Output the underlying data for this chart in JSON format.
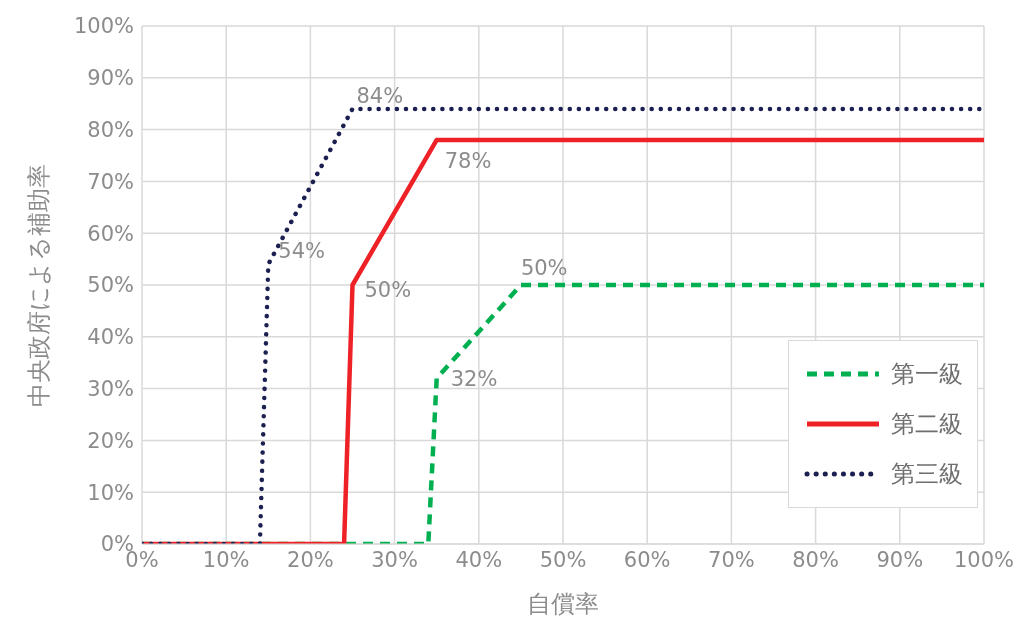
{
  "chart_data": {
    "type": "line",
    "xlabel": "自償率",
    "ylabel": "中央政府による補助率",
    "xlim": [
      0,
      100
    ],
    "ylim": [
      0,
      100
    ],
    "xticks": [
      {
        "value": 0,
        "label": "0%"
      },
      {
        "value": 10,
        "label": "10%"
      },
      {
        "value": 20,
        "label": "20%"
      },
      {
        "value": 30,
        "label": "30%"
      },
      {
        "value": 40,
        "label": "40%"
      },
      {
        "value": 50,
        "label": "50%"
      },
      {
        "value": 60,
        "label": "60%"
      },
      {
        "value": 70,
        "label": "70%"
      },
      {
        "value": 80,
        "label": "80%"
      },
      {
        "value": 90,
        "label": "90%"
      },
      {
        "value": 100,
        "label": "100%"
      }
    ],
    "yticks": [
      {
        "value": 0,
        "label": "0%"
      },
      {
        "value": 10,
        "label": "10%"
      },
      {
        "value": 20,
        "label": "20%"
      },
      {
        "value": 30,
        "label": "30%"
      },
      {
        "value": 40,
        "label": "40%"
      },
      {
        "value": 50,
        "label": "50%"
      },
      {
        "value": 60,
        "label": "60%"
      },
      {
        "value": 70,
        "label": "70%"
      },
      {
        "value": 80,
        "label": "80%"
      },
      {
        "value": 90,
        "label": "90%"
      },
      {
        "value": 100,
        "label": "100%"
      }
    ],
    "grid": true,
    "legend": "bottom right",
    "marker": "none",
    "series": [
      {
        "name": "第一級",
        "color": "#00b050",
        "line_style": "dashed",
        "x": [
          0,
          34,
          35,
          45,
          100
        ],
        "values": [
          0,
          0,
          32,
          50,
          50
        ]
      },
      {
        "name": "第二級",
        "color": "#ee2127",
        "line_style": "solid",
        "x": [
          0,
          24,
          25,
          35,
          100
        ],
        "values": [
          0,
          0,
          50,
          78,
          78
        ]
      },
      {
        "name": "第三級",
        "color": "#1b2051",
        "line_style": "dotted",
        "x": [
          0,
          14,
          15,
          25,
          100
        ],
        "values": [
          0,
          0,
          54,
          84,
          84
        ]
      }
    ],
    "annotations": [
      {
        "text": "84%",
        "x": 25,
        "y": 84
      },
      {
        "text": "78%",
        "x": 35,
        "y": 78
      },
      {
        "text": "54%",
        "x": 15,
        "y": 54
      },
      {
        "text": "50%",
        "x": 25,
        "y": 50
      },
      {
        "text": "50%",
        "x": 45,
        "y": 50
      },
      {
        "text": "32%",
        "x": 35,
        "y": 32
      }
    ]
  }
}
